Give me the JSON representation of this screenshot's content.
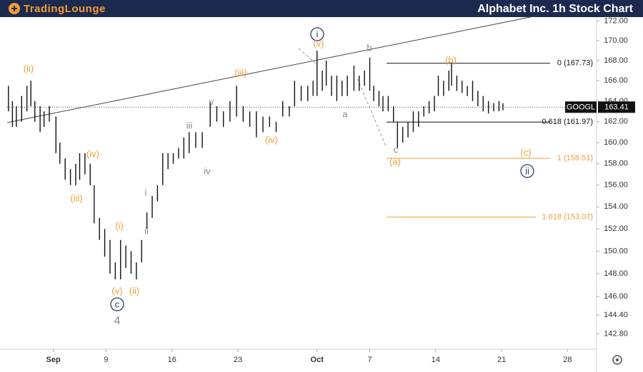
{
  "header": {
    "brand": "TradingLounge"
  },
  "chart_data": {
    "type": "ohlc",
    "title": "Alphabet Inc. 1h Stock Chart",
    "log": true,
    "color": "#111111",
    "ylim": [
      141.5,
      172.4
    ],
    "yticks": [
      {
        "value": 172,
        "label": "172.00"
      },
      {
        "value": 170,
        "label": "170.00"
      },
      {
        "value": 168,
        "label": "168.00"
      },
      {
        "value": 166,
        "label": "166.00"
      },
      {
        "value": 164,
        "label": "164.00"
      },
      {
        "value": 162,
        "label": "162.00"
      },
      {
        "value": 160,
        "label": "160.00"
      },
      {
        "value": 158,
        "label": "158.00"
      },
      {
        "value": 156,
        "label": "156.00"
      },
      {
        "value": 154,
        "label": "154.00"
      },
      {
        "value": 152,
        "label": "152.00"
      },
      {
        "value": 150,
        "label": "150.00"
      },
      {
        "value": 148,
        "label": "148.00"
      },
      {
        "value": 146,
        "label": "146.00"
      },
      {
        "value": 144.4,
        "label": "144.40"
      },
      {
        "value": 142.8,
        "label": "142.80"
      }
    ],
    "xlim": [
      -3.5,
      41.2
    ],
    "xticks": [
      {
        "value": 0,
        "label": "Sep"
      },
      {
        "value": 4,
        "label": "9"
      },
      {
        "value": 9,
        "label": "16"
      },
      {
        "value": 14,
        "label": "23"
      },
      {
        "value": 20,
        "label": "Oct"
      },
      {
        "value": 24,
        "label": "7"
      },
      {
        "value": 29,
        "label": "14"
      },
      {
        "value": 34,
        "label": "21"
      },
      {
        "value": 39,
        "label": "28"
      }
    ],
    "ohlc": {
      "x": [
        -3.4,
        -3.1,
        -2.8,
        -2.4,
        -2.0,
        -1.7,
        -1.4,
        -1.0,
        -0.7,
        -0.3,
        0.2,
        0.5,
        0.9,
        1.3,
        1.7,
        2.0,
        2.4,
        2.8,
        3.1,
        3.5,
        3.9,
        4.3,
        4.7,
        5.1,
        5.5,
        5.9,
        6.3,
        6.7,
        7.1,
        7.5,
        7.9,
        8.3,
        8.7,
        9.1,
        9.5,
        9.9,
        10.3,
        10.8,
        11.3,
        11.9,
        12.4,
        12.9,
        13.4,
        13.9,
        14.4,
        14.9,
        15.4,
        15.9,
        16.4,
        16.9,
        17.4,
        17.9,
        18.3,
        18.8,
        19.3,
        19.7,
        20.0,
        20.4,
        20.7,
        21.1,
        21.5,
        21.9,
        22.3,
        22.8,
        23.2,
        23.6,
        24.0,
        24.3,
        24.7,
        25.0,
        25.4,
        25.8,
        26.1,
        26.5,
        26.9,
        27.3,
        27.7,
        28.1,
        28.5,
        28.9,
        29.2,
        29.6,
        30.0,
        30.2,
        30.6,
        31.0,
        31.4,
        31.8,
        32.2,
        32.6,
        33.0,
        33.4,
        33.8,
        34.1
      ],
      "high": [
        165.5,
        164,
        163.5,
        164.5,
        165.5,
        166,
        164,
        163.5,
        163,
        163.5,
        162.5,
        160,
        158.5,
        157.5,
        158,
        159,
        159,
        158,
        156,
        153,
        152,
        151,
        149,
        151,
        150.5,
        150,
        149,
        151,
        153.5,
        155,
        156,
        159,
        159,
        159,
        159.5,
        160.5,
        161,
        161,
        161,
        164,
        163.5,
        163,
        164,
        165.5,
        163.5,
        163,
        163,
        162.5,
        162.5,
        162,
        164,
        163.5,
        166,
        165.5,
        165.5,
        166,
        169,
        167,
        168,
        166.5,
        166.5,
        166,
        166.5,
        167.5,
        166.5,
        167,
        168.3,
        165.5,
        165,
        164.5,
        164.5,
        163.5,
        162,
        161.5,
        162,
        163,
        163,
        163.5,
        164,
        164.5,
        166.5,
        166,
        167,
        167.7,
        166.5,
        166,
        165.5,
        166,
        165,
        164.5,
        164,
        163.8,
        164,
        163.8
      ],
      "low": [
        163,
        161.5,
        161.5,
        162,
        163,
        163.5,
        162,
        161,
        161.5,
        162,
        159,
        158,
        156.5,
        156,
        156,
        156.5,
        157,
        156,
        152.5,
        151,
        149.5,
        148,
        147.5,
        147.5,
        148.5,
        148,
        147.5,
        149,
        152,
        153,
        154.5,
        156,
        157.5,
        158,
        158.5,
        158.5,
        159,
        159.5,
        159.5,
        161.5,
        162,
        161.5,
        162,
        162.5,
        162,
        161.5,
        160.5,
        161,
        161.5,
        161,
        162.5,
        162.5,
        163.5,
        164,
        164,
        164.5,
        164.5,
        165,
        165.5,
        164.5,
        164,
        164.5,
        164.5,
        165,
        165,
        165.5,
        165,
        164,
        163.5,
        163,
        163,
        162,
        159.5,
        160,
        160.5,
        161,
        161.5,
        162.5,
        162.8,
        163,
        164.5,
        164.5,
        165,
        165.5,
        165,
        164.8,
        164.5,
        164,
        163.5,
        163,
        162.8,
        163,
        163,
        163.1
      ]
    },
    "last_price": {
      "symbol": "GOOGL",
      "value": 163.41,
      "label": "163.41"
    },
    "fib_levels": [
      {
        "label": "0 (167.73)",
        "value": 167.73,
        "color": "#111111"
      },
      {
        "label": "0.618 (161.97)",
        "value": 161.97,
        "color": "#111111"
      },
      {
        "label": "1 (158.51)",
        "value": 158.51,
        "color": "#f39c34"
      },
      {
        "label": "1.618 (153.07)",
        "value": 153.07,
        "color": "#f39c34"
      }
    ],
    "annotations": [
      {
        "text": "(ii)",
        "color": "#f39c34"
      },
      {
        "text": "(iii)",
        "color": "#f39c34"
      },
      {
        "text": "(iv)",
        "color": "#f39c34"
      },
      {
        "text": "(v)",
        "color": "#f39c34"
      },
      {
        "text": "(i)",
        "color": "#f39c34"
      },
      {
        "text": "(ii)",
        "color": "#f39c34"
      },
      {
        "text": "c",
        "color": "#2c3e6b"
      },
      {
        "text": "4",
        "color": "#888888"
      },
      {
        "text": "i",
        "color": "#888888"
      },
      {
        "text": "ii",
        "color": "#888888"
      },
      {
        "text": "iii",
        "color": "#888888"
      },
      {
        "text": "iv",
        "color": "#888888"
      },
      {
        "text": "v",
        "color": "#888888"
      },
      {
        "text": "(iii)",
        "color": "#f39c34"
      },
      {
        "text": "(iv)",
        "color": "#f39c34"
      },
      {
        "text": "i",
        "color": "#2c3e6b"
      },
      {
        "text": "(v)",
        "color": "#f39c34"
      },
      {
        "text": "b",
        "color": "#888888"
      },
      {
        "text": "a",
        "color": "#888888"
      },
      {
        "text": "c",
        "color": "#888888"
      },
      {
        "text": "(a)",
        "color": "#f39c34"
      },
      {
        "text": "(b)",
        "color": "#f39c34"
      },
      {
        "text": "(c)",
        "color": "#f39c34"
      },
      {
        "text": "ii",
        "color": "#2c3e6b"
      }
    ]
  }
}
